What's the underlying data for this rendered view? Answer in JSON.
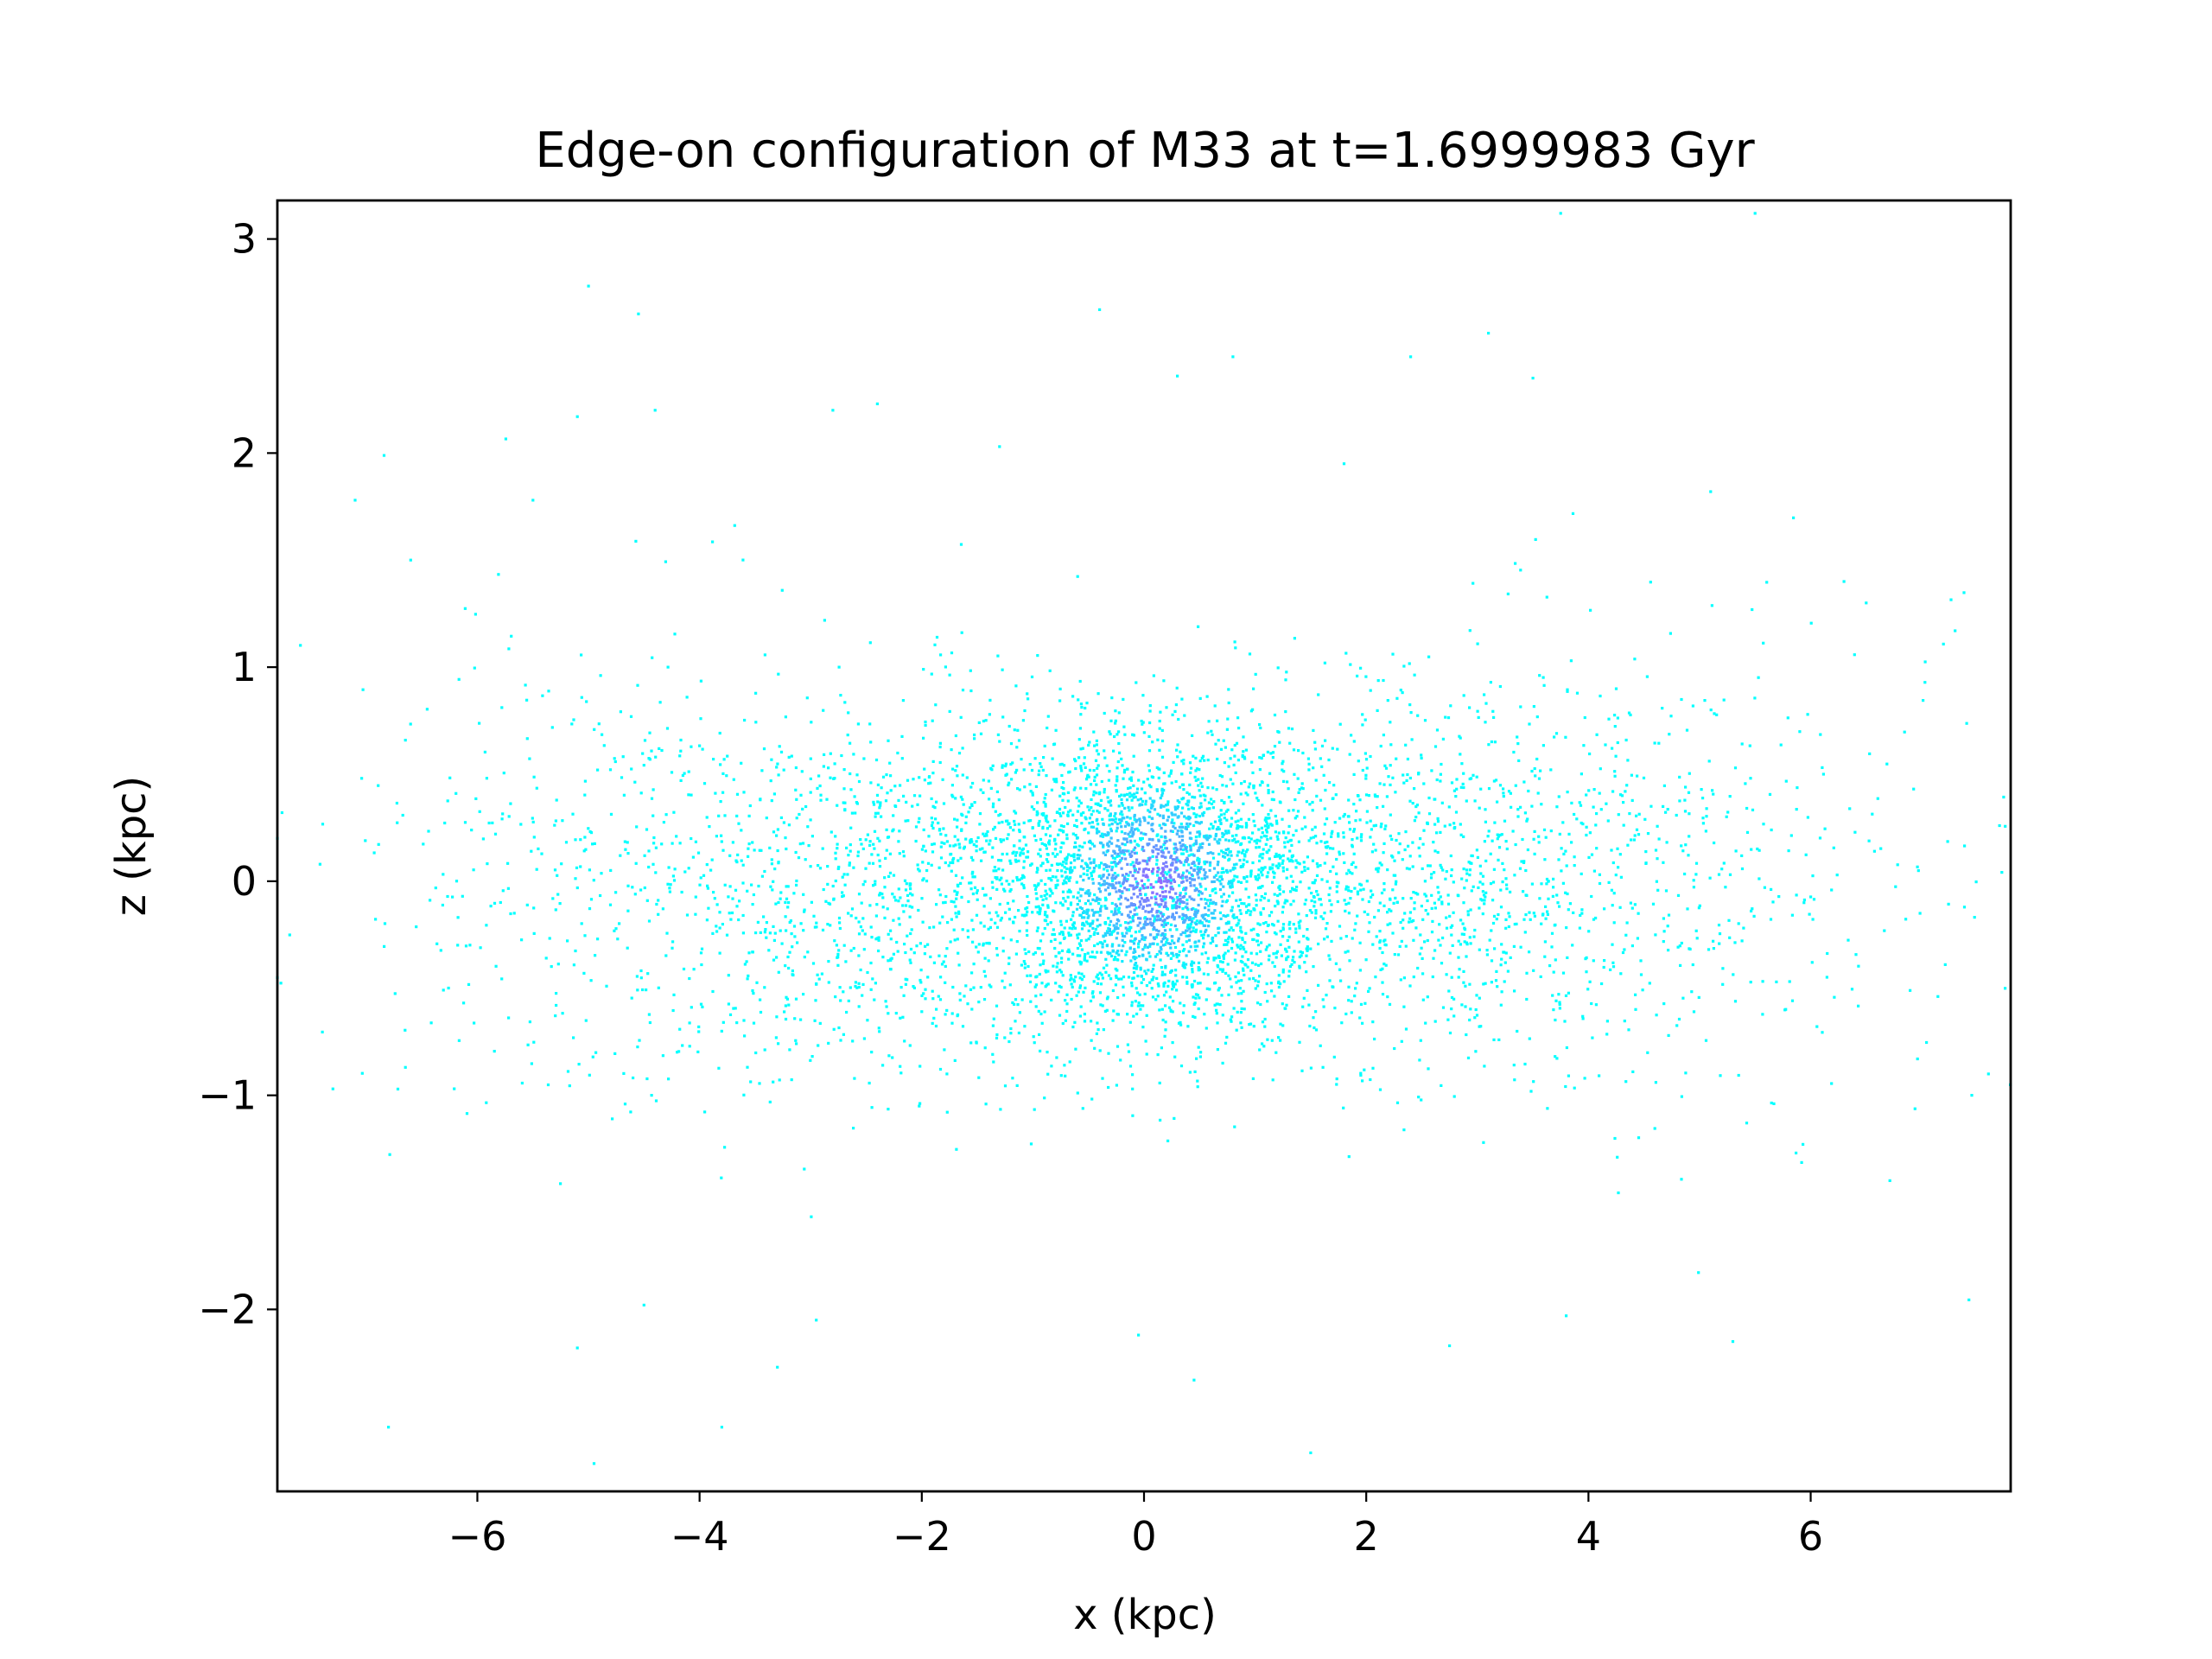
{
  "chart_data": {
    "type": "heatmap",
    "title": "Edge-on configuration of M33 at t=1.6999983 Gyr",
    "xlabel": "x (kpc)",
    "ylabel": "z (kpc)",
    "xlim": [
      -7.8,
      7.8
    ],
    "ylim": [
      -2.85,
      3.18
    ],
    "xticks": [
      -6,
      -4,
      -2,
      0,
      2,
      4,
      6
    ],
    "yticks": [
      -2,
      -1,
      0,
      1,
      2,
      3
    ],
    "xtick_labels": [
      "−6",
      "−4",
      "−2",
      "0",
      "2",
      "4",
      "6"
    ],
    "ytick_labels": [
      "−2",
      "−1",
      "0",
      "1",
      "2",
      "3"
    ],
    "grid": false,
    "legend": "none",
    "colormap": "cool",
    "colors": {
      "low": "#00ffff",
      "high": "#b444ff",
      "frame": "#000000",
      "background": "#ffffff"
    },
    "description_values": {
      "density_peak": {
        "x": 0.1,
        "z": 0.0
      },
      "disk_half_thickness_kpc": 0.35,
      "bulge_radius_kpc": 0.6
    },
    "points": [
      {
        "x": -5.0,
        "y": 2.78
      },
      {
        "x": -4.55,
        "y": 2.65
      },
      {
        "x": -0.4,
        "y": 2.67
      },
      {
        "x": 3.1,
        "y": 2.56
      },
      {
        "x": 3.75,
        "y": 3.12
      },
      {
        "x": 5.5,
        "y": 3.12
      },
      {
        "x": -4.4,
        "y": 2.2
      },
      {
        "x": -5.1,
        "y": 2.17
      },
      {
        "x": -2.8,
        "y": 2.2
      },
      {
        "x": -2.4,
        "y": 2.23
      },
      {
        "x": 0.8,
        "y": 2.45
      },
      {
        "x": 2.4,
        "y": 2.45
      },
      {
        "x": 3.5,
        "y": 2.35
      },
      {
        "x": 0.3,
        "y": 2.36
      },
      {
        "x": -7.1,
        "y": 1.78
      },
      {
        "x": -5.5,
        "y": 1.78
      },
      {
        "x": -1.3,
        "y": 2.03
      },
      {
        "x": 1.8,
        "y": 1.95
      },
      {
        "x": 5.1,
        "y": 1.82
      },
      {
        "x": -6.6,
        "y": 1.5
      },
      {
        "x": 6.3,
        "y": 1.4
      },
      {
        "x": 6.5,
        "y": 1.3
      },
      {
        "x": 7.3,
        "y": 1.17
      },
      {
        "x": -6.8,
        "y": -2.55
      },
      {
        "x": -4.95,
        "y": -2.72
      },
      {
        "x": -3.8,
        "y": -2.55
      },
      {
        "x": -3.3,
        "y": -2.27
      },
      {
        "x": -5.1,
        "y": -2.18
      },
      {
        "x": -2.95,
        "y": -2.05
      },
      {
        "x": -0.05,
        "y": -2.12
      },
      {
        "x": 0.45,
        "y": -2.33
      },
      {
        "x": 1.5,
        "y": -2.67
      },
      {
        "x": 2.75,
        "y": -2.17
      },
      {
        "x": 5.3,
        "y": -2.15
      },
      {
        "x": 3.8,
        "y": -2.03
      },
      {
        "x": -4.5,
        "y": -1.98
      },
      {
        "x": -7.8,
        "y": -0.45
      },
      {
        "x": 7.75,
        "y": -0.5
      },
      {
        "x": 7.6,
        "y": -0.9
      },
      {
        "x": -7.3,
        "y": -0.97
      },
      {
        "x": 7.45,
        "y": -1.0
      },
      {
        "x": -7.8,
        "y": 0.2
      },
      {
        "x": 7.7,
        "y": 0.26
      }
    ]
  }
}
